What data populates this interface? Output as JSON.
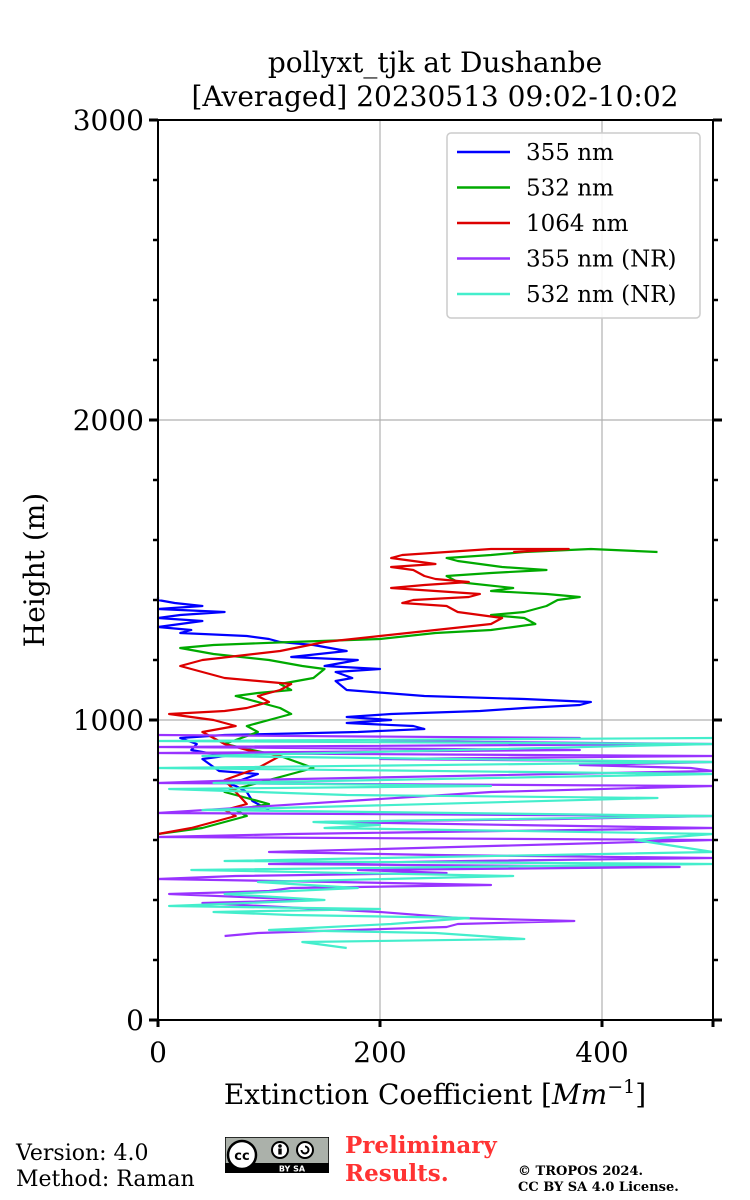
{
  "chart_data": {
    "type": "line",
    "title": "pollyxt_tjk at Dushanbe",
    "subtitle": "[Averaged] 20230513 09:02-10:02",
    "xlabel": "Extinction Coefficient [Mm⁻¹]",
    "ylabel": "Height (m)",
    "xlim": [
      0,
      500
    ],
    "ylim": [
      0,
      3000
    ],
    "x_ticks": [
      0,
      200,
      400
    ],
    "y_ticks": [
      0,
      1000,
      2000,
      3000
    ],
    "grid": true,
    "legend_position": "top-right",
    "series": [
      {
        "name": "355 nm",
        "color": "#0000ff",
        "x": [
          100,
          95,
          85,
          80,
          70,
          60,
          75,
          90,
          55,
          40,
          60,
          30,
          35,
          20,
          60,
          180,
          240,
          230,
          170,
          210,
          170,
          210,
          290,
          330,
          380,
          390,
          330,
          240,
          170,
          160,
          175,
          160,
          200,
          150,
          180,
          120,
          170,
          140,
          110,
          100,
          80,
          20,
          30,
          0,
          20,
          40,
          0,
          20,
          60,
          0,
          40,
          15,
          0,
          0
        ],
        "y": [
          700,
          710,
          730,
          760,
          780,
          790,
          800,
          820,
          830,
          870,
          880,
          900,
          920,
          940,
          950,
          960,
          970,
          980,
          990,
          1000,
          1010,
          1020,
          1030,
          1040,
          1050,
          1060,
          1070,
          1080,
          1100,
          1130,
          1140,
          1160,
          1170,
          1180,
          1200,
          1210,
          1230,
          1250,
          1260,
          1270,
          1280,
          1290,
          1300,
          1310,
          1320,
          1330,
          1340,
          1350,
          1360,
          1370,
          1380,
          1390,
          1400,
          1410
        ]
      },
      {
        "name": "532 nm",
        "color": "#00aa00",
        "x": [
          0,
          40,
          60,
          80,
          70,
          100,
          80,
          60,
          80,
          120,
          140,
          110,
          60,
          90,
          80,
          100,
          120,
          110,
          90,
          70,
          90,
          120,
          110,
          140,
          150,
          130,
          100,
          50,
          20,
          50,
          120,
          200,
          250,
          300,
          340,
          330,
          300,
          330,
          350,
          360,
          380,
          350,
          300,
          320,
          270,
          260,
          300,
          350,
          310,
          270,
          260,
          300,
          330,
          390,
          450
        ],
        "y": [
          620,
          640,
          660,
          680,
          700,
          720,
          740,
          760,
          780,
          820,
          840,
          880,
          920,
          960,
          980,
          1000,
          1020,
          1040,
          1060,
          1080,
          1090,
          1100,
          1120,
          1140,
          1170,
          1180,
          1200,
          1220,
          1240,
          1250,
          1260,
          1270,
          1290,
          1300,
          1320,
          1340,
          1350,
          1360,
          1380,
          1400,
          1410,
          1420,
          1430,
          1440,
          1460,
          1480,
          1490,
          1500,
          1510,
          1530,
          1540,
          1550,
          1560,
          1570,
          1560
        ]
      },
      {
        "name": "1064 nm",
        "color": "#dd0000",
        "x": [
          0,
          30,
          50,
          70,
          60,
          80,
          70,
          60,
          90,
          110,
          80,
          60,
          40,
          70,
          50,
          10,
          60,
          80,
          100,
          90,
          110,
          120,
          60,
          40,
          20,
          40,
          110,
          150,
          200,
          250,
          300,
          310,
          270,
          260,
          220,
          230,
          280,
          290,
          210,
          240,
          280,
          250,
          240,
          230,
          210,
          250,
          230,
          210,
          220,
          260,
          300,
          370,
          320
        ],
        "y": [
          620,
          640,
          660,
          680,
          700,
          720,
          760,
          800,
          840,
          880,
          900,
          920,
          960,
          980,
          1000,
          1020,
          1030,
          1040,
          1060,
          1080,
          1100,
          1120,
          1140,
          1160,
          1180,
          1200,
          1230,
          1260,
          1280,
          1300,
          1320,
          1340,
          1360,
          1380,
          1390,
          1400,
          1410,
          1420,
          1440,
          1450,
          1460,
          1470,
          1480,
          1500,
          1510,
          1520,
          1530,
          1540,
          1550,
          1560,
          1570,
          1570,
          1560
        ]
      },
      {
        "name": "355 nm (NR)",
        "color": "#9933ff",
        "x": [
          60,
          90,
          260,
          270,
          375,
          270,
          200,
          40,
          140,
          10,
          100,
          120,
          300,
          160,
          0,
          70,
          260,
          180,
          470,
          100,
          280,
          500,
          250,
          100,
          400,
          500,
          0,
          120,
          500,
          320,
          150,
          360,
          500,
          0,
          300,
          500,
          0,
          80,
          500,
          480,
          380,
          500,
          200,
          500,
          0,
          380,
          0,
          500,
          200,
          380,
          0
        ],
        "y": [
          280,
          290,
          310,
          320,
          330,
          340,
          360,
          390,
          400,
          420,
          430,
          440,
          450,
          460,
          470,
          480,
          490,
          500,
          510,
          520,
          530,
          540,
          550,
          560,
          590,
          600,
          610,
          620,
          640,
          650,
          660,
          670,
          680,
          690,
          760,
          780,
          790,
          800,
          830,
          840,
          850,
          860,
          870,
          880,
          890,
          900,
          910,
          920,
          930,
          940,
          950
        ]
      },
      {
        "name": "532 nm (NR)",
        "color": "#44eecc",
        "x": [
          170,
          130,
          330,
          250,
          100,
          210,
          280,
          120,
          50,
          200,
          10,
          150,
          60,
          180,
          90,
          320,
          30,
          500,
          60,
          200,
          500,
          430,
          500,
          150,
          200,
          140,
          500,
          40,
          450,
          170,
          10,
          300,
          50,
          500,
          0,
          500,
          40,
          500,
          0,
          500
        ],
        "y": [
          240,
          260,
          270,
          290,
          300,
          320,
          340,
          350,
          360,
          370,
          380,
          400,
          420,
          440,
          460,
          480,
          500,
          520,
          530,
          540,
          560,
          600,
          620,
          640,
          650,
          660,
          680,
          700,
          740,
          750,
          770,
          780,
          790,
          820,
          840,
          860,
          880,
          920,
          930,
          940
        ]
      }
    ]
  },
  "footer": {
    "version": "Version: 4.0",
    "method": "Method: Raman",
    "preliminary_line1": "Preliminary",
    "preliminary_line2": "Results.",
    "copyright_line1": "© TROPOS 2024.",
    "copyright_line2": "CC BY SA 4.0 License.",
    "badge_text": "BY SA"
  }
}
